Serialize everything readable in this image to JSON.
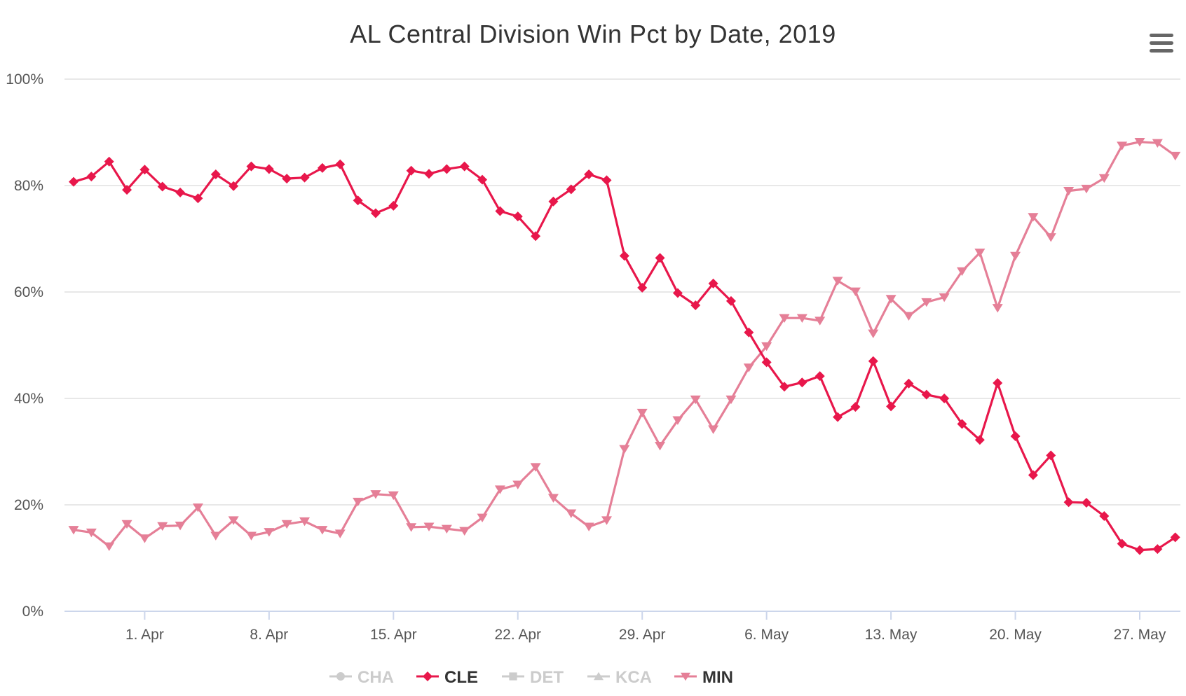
{
  "title": "AL Central Division Win Pct by Date, 2019",
  "menu": {
    "icon": "hamburger-menu-icon"
  },
  "chart_data": {
    "type": "line",
    "title": "AL Central Division Win Pct by Date, 2019",
    "ylim": [
      0,
      100
    ],
    "y_ticks": [
      0,
      20,
      40,
      60,
      80,
      100
    ],
    "y_tick_labels": [
      "0%",
      "20%",
      "40%",
      "60%",
      "80%",
      "100%"
    ],
    "x_start_date": "2019-03-28",
    "x_ticks": [
      {
        "label": "1. Apr",
        "day_index": 4
      },
      {
        "label": "8. Apr",
        "day_index": 11
      },
      {
        "label": "15. Apr",
        "day_index": 18
      },
      {
        "label": "22. Apr",
        "day_index": 25
      },
      {
        "label": "29. Apr",
        "day_index": 32
      },
      {
        "label": "6. May",
        "day_index": 39
      },
      {
        "label": "13. May",
        "day_index": 46
      },
      {
        "label": "20. May",
        "day_index": 53
      },
      {
        "label": "27. May",
        "day_index": 60
      }
    ],
    "grid": true,
    "legend": "bottom-center",
    "series": [
      {
        "name": "CHA",
        "visible": false,
        "marker": "circle",
        "color": "#cccccc",
        "values": []
      },
      {
        "name": "CLE",
        "visible": true,
        "marker": "diamond",
        "color": "#e8174b",
        "values": [
          80.7,
          81.7,
          84.5,
          79.2,
          83.0,
          79.8,
          78.7,
          77.6,
          82.1,
          79.9,
          83.6,
          83.1,
          81.3,
          81.5,
          83.3,
          84.0,
          77.2,
          74.8,
          76.2,
          82.8,
          82.2,
          83.1,
          83.6,
          81.1,
          75.2,
          74.2,
          70.5,
          77.0,
          79.3,
          82.1,
          81.0,
          66.8,
          60.8,
          66.4,
          59.8,
          57.5,
          61.6,
          58.3,
          52.4,
          46.8,
          42.2,
          43.0,
          44.2,
          36.5,
          38.4,
          47.0,
          38.5,
          42.8,
          40.7,
          40.0,
          35.2,
          32.2,
          42.9,
          32.9,
          25.6,
          29.3,
          20.5,
          20.4,
          17.9,
          12.7,
          11.5,
          11.7,
          13.9
        ]
      },
      {
        "name": "DET",
        "visible": false,
        "marker": "square",
        "color": "#cccccc",
        "values": []
      },
      {
        "name": "KCA",
        "visible": false,
        "marker": "triangle",
        "color": "#cccccc",
        "values": []
      },
      {
        "name": "MIN",
        "visible": true,
        "marker": "triangle-down",
        "color": "#e57f97",
        "values": [
          15.3,
          14.8,
          12.2,
          16.4,
          13.7,
          16.0,
          16.1,
          19.5,
          14.2,
          17.1,
          14.2,
          14.9,
          16.4,
          16.9,
          15.3,
          14.6,
          20.6,
          22.0,
          21.8,
          15.8,
          15.9,
          15.5,
          15.1,
          17.6,
          22.9,
          23.8,
          27.1,
          21.3,
          18.4,
          15.9,
          17.1,
          30.5,
          37.3,
          31.1,
          35.9,
          39.8,
          34.2,
          39.8,
          45.8,
          49.8,
          55.1,
          55.1,
          54.6,
          62.1,
          60.1,
          52.2,
          58.7,
          55.5,
          58.1,
          59.0,
          63.9,
          67.4,
          57.0,
          66.8,
          74.1,
          70.3,
          79.0,
          79.4,
          81.4,
          87.5,
          88.2,
          88.0,
          85.6
        ]
      }
    ]
  }
}
